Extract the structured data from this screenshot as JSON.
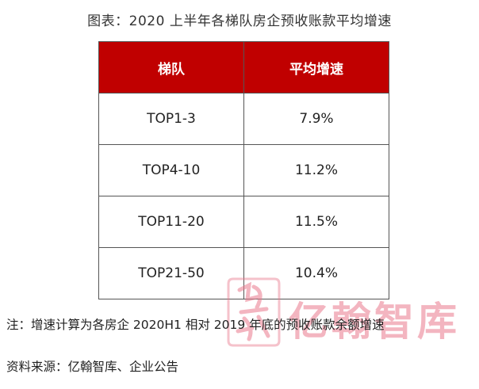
{
  "title": "图表：2020 上半年各梯队房企预收账款平均增速",
  "table": {
    "headers": [
      "梯队",
      "平均增速"
    ],
    "rows": [
      [
        "TOP1-3",
        "7.9%"
      ],
      [
        "TOP4-10",
        "11.2%"
      ],
      [
        "TOP11-20",
        "11.5%"
      ],
      [
        "TOP21-50",
        "10.4%"
      ]
    ]
  },
  "note": "注：增速计算为各房企 2020H1 相对 2019 年底的预收账款余额增速",
  "source": "资料来源：亿翰智库、企业公告",
  "watermark": {
    "seal_text": "亿翰",
    "text": "亿翰智库"
  },
  "colors": {
    "header_bg": "#c00000",
    "header_text": "#ffffff",
    "watermark": "#e9788c"
  }
}
